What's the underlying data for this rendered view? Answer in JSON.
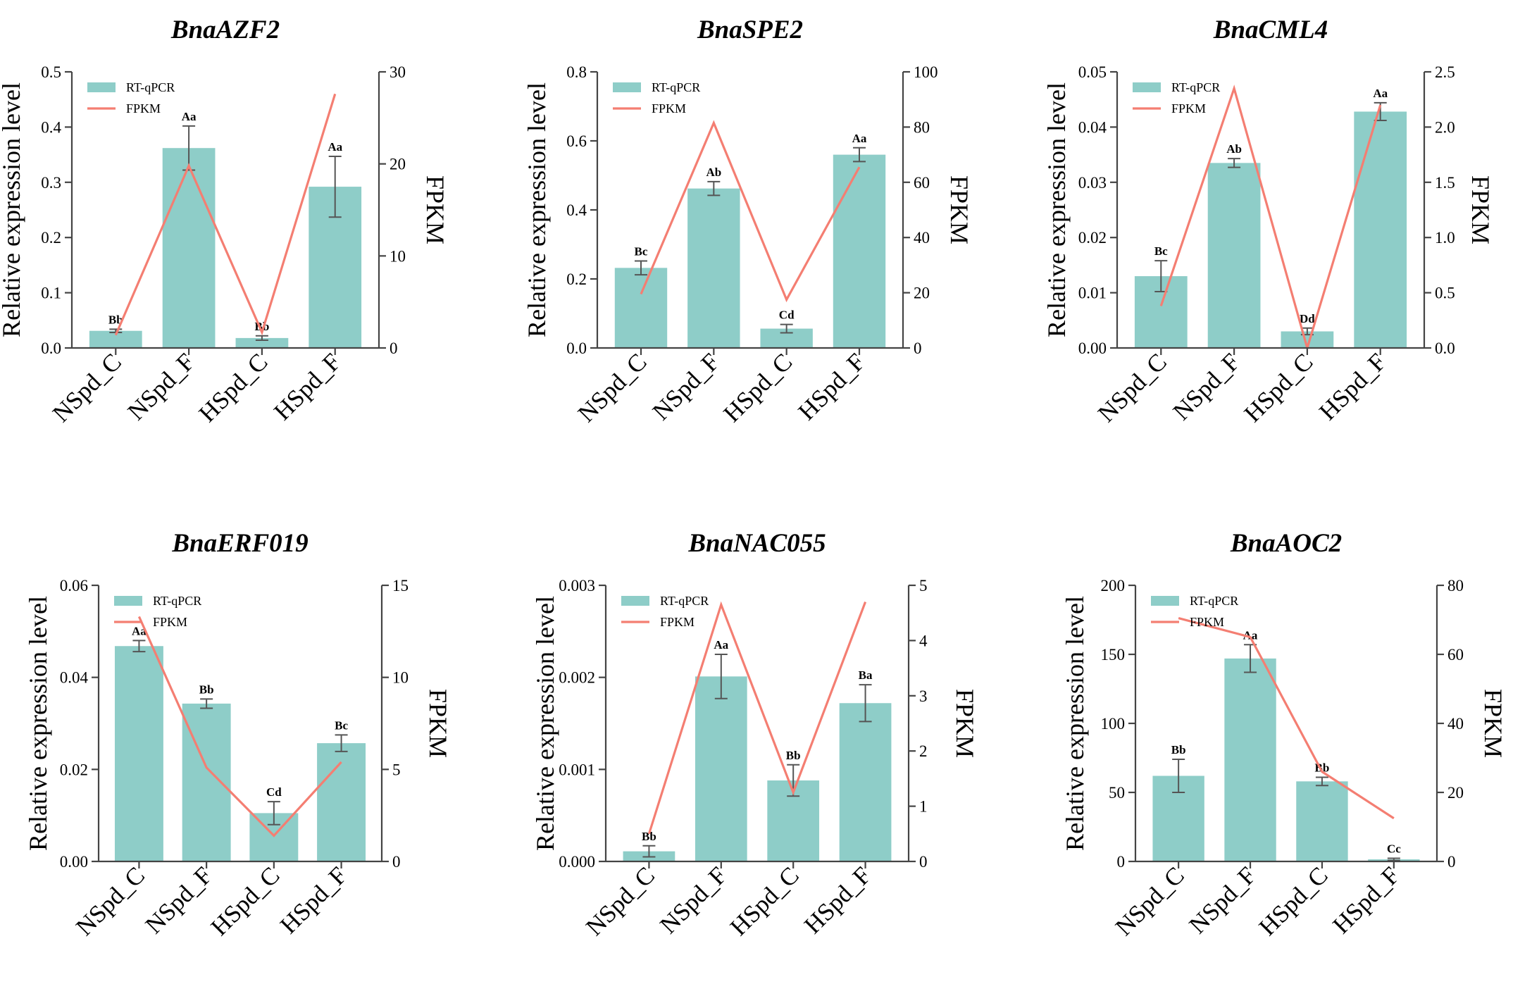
{
  "colors": {
    "bar": "#8ecdc8",
    "line": "#f47e72",
    "axis": "#444444"
  },
  "chart_data": [
    {
      "type": "bar",
      "title": "BnaAZF2",
      "categories": [
        "NSpd_C",
        "NSpd_F",
        "HSpd_C",
        "HSpd_F"
      ],
      "ylabel": "Relative expression level",
      "y2label": "FPKM",
      "ylim": [
        0,
        0.5
      ],
      "yticks": [
        "0.0",
        "0.1",
        "0.2",
        "0.3",
        "0.4",
        "0.5"
      ],
      "y2lim": [
        0,
        30
      ],
      "y2ticks": [
        "0",
        "10",
        "20",
        "30"
      ],
      "legend": [
        "RT-qPCR",
        "FPKM"
      ],
      "series": [
        {
          "name": "RT-qPCR",
          "type": "bar",
          "values": [
            0.031,
            0.362,
            0.018,
            0.292
          ],
          "errors": [
            0.003,
            0.04,
            0.004,
            0.055
          ]
        },
        {
          "name": "FPKM",
          "type": "line",
          "axis": "right",
          "values": [
            1.4,
            19.8,
            1.7,
            27.6
          ]
        }
      ],
      "annotations": [
        "Bb",
        "Aa",
        "Bb",
        "Aa"
      ]
    },
    {
      "type": "bar",
      "title": "BnaSPE2",
      "categories": [
        "NSpd_C",
        "NSpd_F",
        "HSpd_C",
        "HSpd_F"
      ],
      "ylabel": "Relative expression level",
      "y2label": "FPKM",
      "ylim": [
        0,
        0.8
      ],
      "yticks": [
        "0.0",
        "0.2",
        "0.4",
        "0.6",
        "0.8"
      ],
      "y2lim": [
        0,
        100
      ],
      "y2ticks": [
        "0",
        "20",
        "40",
        "60",
        "80",
        "100"
      ],
      "legend": [
        "RT-qPCR",
        "FPKM"
      ],
      "series": [
        {
          "name": "RT-qPCR",
          "type": "bar",
          "values": [
            0.232,
            0.462,
            0.056,
            0.56
          ],
          "errors": [
            0.02,
            0.02,
            0.012,
            0.02
          ]
        },
        {
          "name": "FPKM",
          "type": "line",
          "axis": "right",
          "values": [
            19.5,
            81.5,
            17.5,
            65.5
          ]
        }
      ],
      "annotations": [
        "Bc",
        "Ab",
        "Cd",
        "Aa"
      ]
    },
    {
      "type": "bar",
      "title": "BnaCML4",
      "categories": [
        "NSpd_C",
        "NSpd_F",
        "HSpd_C",
        "HSpd_F"
      ],
      "ylabel": "Relative expression level",
      "y2label": "FPKM",
      "ylim": [
        0,
        0.05
      ],
      "yticks": [
        "0.00",
        "0.01",
        "0.02",
        "0.03",
        "0.04",
        "0.05"
      ],
      "y2lim": [
        0,
        2.5
      ],
      "y2ticks": [
        "0.0",
        "0.5",
        "1.0",
        "1.5",
        "2.0",
        "2.5"
      ],
      "legend": [
        "RT-qPCR",
        "FPKM"
      ],
      "series": [
        {
          "name": "RT-qPCR",
          "type": "bar",
          "values": [
            0.013,
            0.0335,
            0.003,
            0.0428
          ],
          "errors": [
            0.0028,
            0.0008,
            0.0006,
            0.0016
          ]
        },
        {
          "name": "FPKM",
          "type": "line",
          "axis": "right",
          "values": [
            0.38,
            2.35,
            0.0,
            2.2
          ]
        }
      ],
      "annotations": [
        "Bc",
        "Ab",
        "Dd",
        "Aa"
      ]
    },
    {
      "type": "bar",
      "title": "BnaERF019",
      "categories": [
        "NSpd_C",
        "NSpd_F",
        "HSpd_C",
        "HSpd_F"
      ],
      "ylabel": "Relative expression level",
      "y2label": "FPKM",
      "ylim": [
        0,
        0.06
      ],
      "yticks": [
        "0.00",
        "0.02",
        "0.04",
        "0.06"
      ],
      "y2lim": [
        0,
        15
      ],
      "y2ticks": [
        "0",
        "5",
        "10",
        "15"
      ],
      "legend": [
        "RT-qPCR",
        "FPKM"
      ],
      "series": [
        {
          "name": "RT-qPCR",
          "type": "bar",
          "values": [
            0.0468,
            0.0343,
            0.0105,
            0.0257
          ],
          "errors": [
            0.0012,
            0.001,
            0.0025,
            0.0018
          ]
        },
        {
          "name": "FPKM",
          "type": "line",
          "axis": "right",
          "values": [
            13.3,
            5.1,
            1.4,
            5.4
          ]
        }
      ],
      "annotations": [
        "Aa",
        "Bb",
        "Cd",
        "Bc"
      ]
    },
    {
      "type": "bar",
      "title": "BnaNAC055",
      "categories": [
        "NSpd_C",
        "NSpd_F",
        "HSpd_C",
        "HSpd_F"
      ],
      "ylabel": "Relative expression level",
      "y2label": "FPKM",
      "ylim": [
        0,
        0.003
      ],
      "yticks": [
        "0.000",
        "0.001",
        "0.002",
        "0.003"
      ],
      "y2lim": [
        0,
        5
      ],
      "y2ticks": [
        "0",
        "1",
        "2",
        "3",
        "4",
        "5"
      ],
      "legend": [
        "RT-qPCR",
        "FPKM"
      ],
      "series": [
        {
          "name": "RT-qPCR",
          "type": "bar",
          "values": [
            0.00011,
            0.00201,
            0.00088,
            0.00172
          ],
          "errors": [
            6e-05,
            0.00024,
            0.00017,
            0.0002
          ]
        },
        {
          "name": "FPKM",
          "type": "line",
          "axis": "right",
          "values": [
            0.5,
            4.65,
            1.25,
            4.7
          ]
        }
      ],
      "annotations": [
        "Bb",
        "Aa",
        "Bb",
        "Ba"
      ]
    },
    {
      "type": "bar",
      "title": "BnaAOC2",
      "categories": [
        "NSpd_C",
        "NSpd_F",
        "HSpd_C",
        "HSpd_F"
      ],
      "ylabel": "Relative expression level",
      "y2label": "FPKM",
      "ylim": [
        0,
        200
      ],
      "yticks": [
        "0",
        "50",
        "100",
        "150",
        "200"
      ],
      "y2lim": [
        0,
        80
      ],
      "y2ticks": [
        "0",
        "20",
        "40",
        "60",
        "80"
      ],
      "legend": [
        "RT-qPCR",
        "FPKM"
      ],
      "series": [
        {
          "name": "RT-qPCR",
          "type": "bar",
          "values": [
            62,
            147,
            58,
            1.5
          ],
          "errors": [
            12,
            10,
            3,
            0.8
          ]
        },
        {
          "name": "FPKM",
          "type": "line",
          "axis": "right",
          "values": [
            70.5,
            65,
            26,
            12.5
          ]
        }
      ],
      "annotations": [
        "Bb",
        "Aa",
        "Bb",
        "Cc"
      ]
    }
  ]
}
